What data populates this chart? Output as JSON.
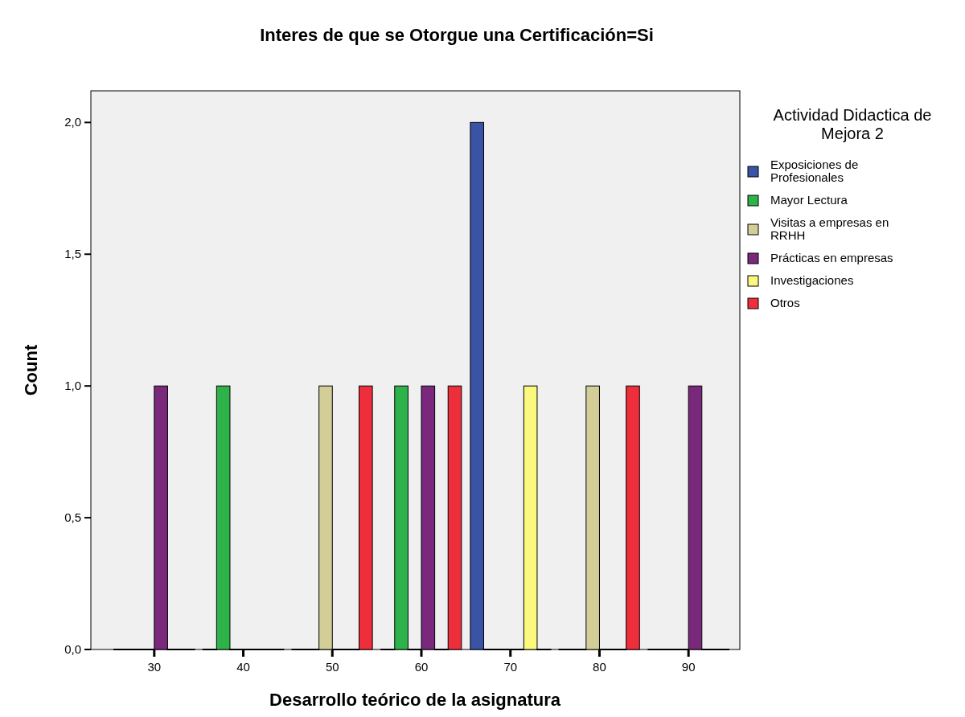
{
  "chart_data": {
    "type": "bar",
    "title": "Interes de que se Otorgue una Certificación=Si",
    "xlabel": "Desarrollo teórico de la asignatura",
    "ylabel": "Count",
    "legend_title": "Actividad Didactica de Mejora 2",
    "legend": "right",
    "grid": false,
    "categories": [
      "30",
      "40",
      "50",
      "60",
      "70",
      "80",
      "90"
    ],
    "ylim": [
      0,
      2.12
    ],
    "yticks": [
      {
        "value": 0,
        "label": "0,0"
      },
      {
        "value": 0.5,
        "label": "0,5"
      },
      {
        "value": 1,
        "label": "1,0"
      },
      {
        "value": 1.5,
        "label": "1,5"
      },
      {
        "value": 2,
        "label": "2,0"
      }
    ],
    "series": [
      {
        "name": "Exposiciones de Profesionales",
        "color": "#3a53a4",
        "values": [
          0,
          0,
          0,
          0,
          2,
          0,
          0
        ]
      },
      {
        "name": "Mayor Lectura",
        "color": "#2db34a",
        "values": [
          0,
          1,
          0,
          1,
          0,
          0,
          0
        ]
      },
      {
        "name": "Visitas a empresas en RRHH",
        "color": "#d3ce97",
        "values": [
          0,
          0,
          1,
          0,
          0,
          1,
          0
        ]
      },
      {
        "name": "Prácticas en empresas",
        "color": "#79287c",
        "values": [
          1,
          0,
          0,
          1,
          0,
          0,
          1
        ]
      },
      {
        "name": "Investigaciones",
        "color": "#fbf87e",
        "values": [
          0,
          0,
          0,
          0,
          1,
          0,
          0
        ]
      },
      {
        "name": "Otros",
        "color": "#ee2e3a",
        "values": [
          0,
          0,
          1,
          1,
          0,
          1,
          0
        ]
      }
    ]
  }
}
